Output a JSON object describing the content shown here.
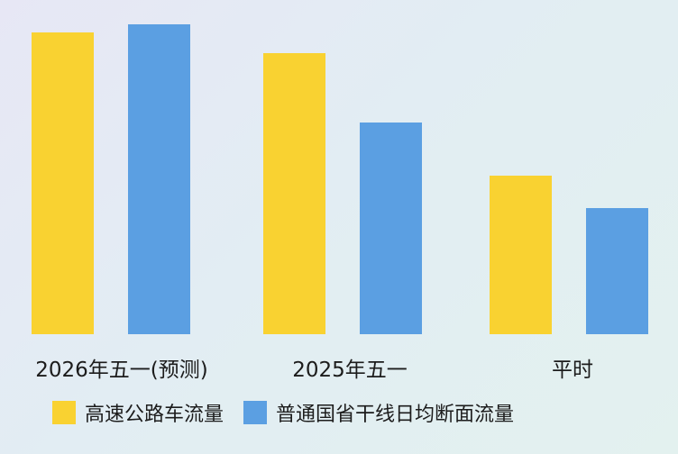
{
  "chart_data": {
    "type": "bar",
    "categories": [
      "2026年五一(预测)",
      "2025年五一",
      "平时"
    ],
    "series": [
      {
        "name": "高速公路车流量",
        "color": "#f9d231",
        "values": [
          335,
          312,
          176
        ]
      },
      {
        "name": "普通国省干线日均断面流量",
        "color": "#5b9fe2",
        "values": [
          344,
          235,
          140
        ]
      }
    ],
    "ylim": [
      0,
      360
    ],
    "grid": false,
    "legend": "bottom-left"
  }
}
